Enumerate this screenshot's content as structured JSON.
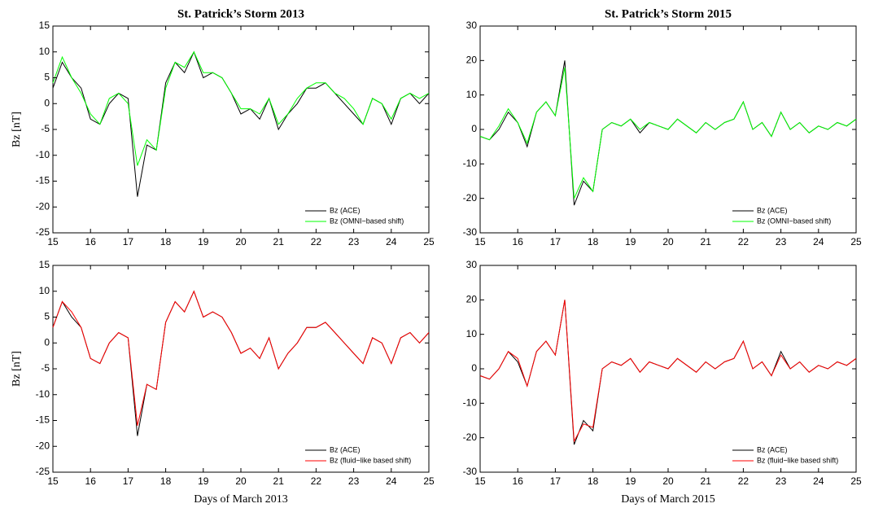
{
  "chart_data": [
    {
      "type": "line",
      "title": "St. Patrick’s Storm 2013",
      "y_label": "Bz [nT]",
      "x": [
        15,
        15.25,
        15.5,
        15.75,
        16,
        16.25,
        16.5,
        16.75,
        17,
        17.25,
        17.5,
        17.75,
        18,
        18.25,
        18.5,
        18.75,
        19,
        19.25,
        19.5,
        19.75,
        20,
        20.25,
        20.5,
        20.75,
        21,
        21.25,
        21.5,
        21.75,
        22,
        22.25,
        22.5,
        22.75,
        23,
        23.25,
        23.5,
        23.75,
        24,
        24.25,
        24.5,
        24.75,
        25
      ],
      "series": [
        {
          "name": "Bz (ACE)",
          "color": "#000000",
          "values": [
            3,
            8,
            5,
            3,
            -3,
            -4,
            0,
            2,
            1,
            -18,
            -8,
            -9,
            4,
            8,
            6,
            10,
            5,
            6,
            5,
            2,
            -2,
            -1,
            -3,
            1,
            -5,
            -2,
            0,
            3,
            3,
            4,
            2,
            0,
            -2,
            -4,
            1,
            0,
            -4,
            1,
            2,
            0,
            2
          ]
        },
        {
          "name": "Bz (OMNI−based shift)",
          "color": "#00ff00",
          "values": [
            4,
            9,
            5,
            2,
            -2,
            -4,
            1,
            2,
            0,
            -12,
            -7,
            -9,
            3,
            8,
            7,
            10,
            6,
            6,
            5,
            2,
            -1,
            -1,
            -2,
            1,
            -4,
            -2,
            1,
            3,
            4,
            4,
            2,
            1,
            -1,
            -4,
            1,
            0,
            -3,
            1,
            2,
            1,
            2
          ]
        }
      ],
      "xlim": [
        15,
        25
      ],
      "ylim": [
        -25,
        15
      ],
      "xticks": [
        15,
        16,
        17,
        18,
        19,
        20,
        21,
        22,
        23,
        24,
        25
      ],
      "yticks": [
        -25,
        -20,
        -15,
        -10,
        -5,
        0,
        5,
        10,
        15
      ],
      "legend": "lower right"
    },
    {
      "type": "line",
      "title": "St. Patrick’s Storm 2015",
      "x": [
        15,
        15.25,
        15.5,
        15.75,
        16,
        16.25,
        16.5,
        16.75,
        17,
        17.25,
        17.5,
        17.75,
        18,
        18.25,
        18.5,
        18.75,
        19,
        19.25,
        19.5,
        19.75,
        20,
        20.25,
        20.5,
        20.75,
        21,
        21.25,
        21.5,
        21.75,
        22,
        22.25,
        22.5,
        22.75,
        23,
        23.25,
        23.5,
        23.75,
        24,
        24.25,
        24.5,
        24.75,
        25
      ],
      "series": [
        {
          "name": "Bz (ACE)",
          "color": "#000000",
          "values": [
            -2,
            -3,
            0,
            5,
            2,
            -5,
            5,
            8,
            4,
            20,
            -22,
            -15,
            -18,
            0,
            2,
            1,
            3,
            -1,
            2,
            1,
            0,
            3,
            1,
            -1,
            2,
            0,
            2,
            3,
            8,
            0,
            2,
            -2,
            5,
            0,
            2,
            -1,
            1,
            0,
            2,
            1,
            3
          ]
        },
        {
          "name": "Bz (OMNI−based shift)",
          "color": "#00ff00",
          "values": [
            -2,
            -3,
            1,
            6,
            2,
            -4,
            5,
            8,
            4,
            18,
            -20,
            -14,
            -18,
            0,
            2,
            1,
            3,
            0,
            2,
            1,
            0,
            3,
            1,
            -1,
            2,
            0,
            2,
            3,
            8,
            0,
            2,
            -2,
            5,
            0,
            2,
            -1,
            1,
            0,
            2,
            1,
            3
          ]
        }
      ],
      "xlim": [
        15,
        25
      ],
      "ylim": [
        -30,
        30
      ],
      "xticks": [
        15,
        16,
        17,
        18,
        19,
        20,
        21,
        22,
        23,
        24,
        25
      ],
      "yticks": [
        -30,
        -20,
        -10,
        0,
        10,
        20,
        30
      ],
      "legend": "lower right"
    },
    {
      "type": "line",
      "y_label": "Bz [nT]",
      "x_label": "Days of March 2013",
      "x": [
        15,
        15.25,
        15.5,
        15.75,
        16,
        16.25,
        16.5,
        16.75,
        17,
        17.25,
        17.5,
        17.75,
        18,
        18.25,
        18.5,
        18.75,
        19,
        19.25,
        19.5,
        19.75,
        20,
        20.25,
        20.5,
        20.75,
        21,
        21.25,
        21.5,
        21.75,
        22,
        22.25,
        22.5,
        22.75,
        23,
        23.25,
        23.5,
        23.75,
        24,
        24.25,
        24.5,
        24.75,
        25
      ],
      "series": [
        {
          "name": "Bz (ACE)",
          "color": "#000000",
          "values": [
            3,
            8,
            5,
            3,
            -3,
            -4,
            0,
            2,
            1,
            -18,
            -8,
            -9,
            4,
            8,
            6,
            10,
            5,
            6,
            5,
            2,
            -2,
            -1,
            -3,
            1,
            -5,
            -2,
            0,
            3,
            3,
            4,
            2,
            0,
            -2,
            -4,
            1,
            0,
            -4,
            1,
            2,
            0,
            2
          ]
        },
        {
          "name": "Bz (fluid−like based shift)",
          "color": "#ff0000",
          "values": [
            3,
            8,
            6,
            3,
            -3,
            -4,
            0,
            2,
            1,
            -16,
            -8,
            -9,
            4,
            8,
            6,
            10,
            5,
            6,
            5,
            2,
            -2,
            -1,
            -3,
            1,
            -5,
            -2,
            0,
            3,
            3,
            4,
            2,
            0,
            -2,
            -4,
            1,
            0,
            -4,
            1,
            2,
            0,
            2
          ]
        }
      ],
      "xlim": [
        15,
        25
      ],
      "ylim": [
        -25,
        15
      ],
      "xticks": [
        15,
        16,
        17,
        18,
        19,
        20,
        21,
        22,
        23,
        24,
        25
      ],
      "yticks": [
        -25,
        -20,
        -15,
        -10,
        -5,
        0,
        5,
        10,
        15
      ],
      "legend": "lower right"
    },
    {
      "type": "line",
      "x_label": "Days of March 2015",
      "x": [
        15,
        15.25,
        15.5,
        15.75,
        16,
        16.25,
        16.5,
        16.75,
        17,
        17.25,
        17.5,
        17.75,
        18,
        18.25,
        18.5,
        18.75,
        19,
        19.25,
        19.5,
        19.75,
        20,
        20.25,
        20.5,
        20.75,
        21,
        21.25,
        21.5,
        21.75,
        22,
        22.25,
        22.5,
        22.75,
        23,
        23.25,
        23.5,
        23.75,
        24,
        24.25,
        24.5,
        24.75,
        25
      ],
      "series": [
        {
          "name": "Bz (ACE)",
          "color": "#000000",
          "values": [
            -2,
            -3,
            0,
            5,
            2,
            -5,
            5,
            8,
            4,
            20,
            -22,
            -15,
            -18,
            0,
            2,
            1,
            3,
            -1,
            2,
            1,
            0,
            3,
            1,
            -1,
            2,
            0,
            2,
            3,
            8,
            0,
            2,
            -2,
            5,
            0,
            2,
            -1,
            1,
            0,
            2,
            1,
            3
          ]
        },
        {
          "name": "Bz (fluid−like based shift)",
          "color": "#ff0000",
          "values": [
            -2,
            -3,
            0,
            5,
            3,
            -5,
            5,
            8,
            4,
            20,
            -21,
            -16,
            -17,
            0,
            2,
            1,
            3,
            -1,
            2,
            1,
            0,
            3,
            1,
            -1,
            2,
            0,
            2,
            3,
            8,
            0,
            2,
            -2,
            4,
            0,
            2,
            -1,
            1,
            0,
            2,
            1,
            3
          ]
        }
      ],
      "xlim": [
        15,
        25
      ],
      "ylim": [
        -30,
        30
      ],
      "xticks": [
        15,
        16,
        17,
        18,
        19,
        20,
        21,
        22,
        23,
        24,
        25
      ],
      "yticks": [
        -30,
        -20,
        -10,
        0,
        10,
        20,
        30
      ],
      "legend": "lower right"
    }
  ]
}
